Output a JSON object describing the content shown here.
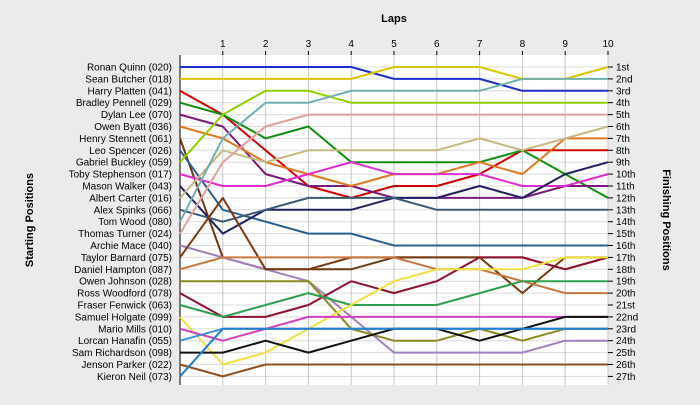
{
  "chart_data": {
    "type": "line",
    "title": "",
    "xlabel": "Laps",
    "ylabel_left": "Starting Positions",
    "ylabel_right": "Finishing Positions",
    "x": [
      0,
      1,
      2,
      3,
      4,
      5,
      6,
      7,
      8,
      9,
      10
    ],
    "x_tick_labels": [
      "1",
      "2",
      "3",
      "4",
      "5",
      "6",
      "7",
      "8",
      "9",
      "10"
    ],
    "finishing_labels": [
      "1st",
      "2nd",
      "3rd",
      "4th",
      "5th",
      "6th",
      "7th",
      "8th",
      "9th",
      "10th",
      "11th",
      "12th",
      "13th",
      "14th",
      "15th",
      "16th",
      "17th",
      "18th",
      "19th",
      "20th",
      "21st",
      "22nd",
      "23rd",
      "24th",
      "25th",
      "26th",
      "27th"
    ],
    "ylim": [
      1,
      27
    ],
    "grid": true,
    "series": [
      {
        "name": "Ronan Quinn (020)",
        "color": "#1e2ecc",
        "values": [
          1,
          1,
          1,
          1,
          1,
          2,
          2,
          2,
          3,
          3,
          3
        ]
      },
      {
        "name": "Sean Butcher (018)",
        "color": "#d9c400",
        "values": [
          2,
          2,
          2,
          2,
          2,
          1,
          1,
          1,
          2,
          2,
          1
        ]
      },
      {
        "name": "Harry Platten (041)",
        "color": "#d40000",
        "values": [
          3,
          5,
          8,
          11,
          12,
          11,
          11,
          10,
          8,
          8,
          8
        ]
      },
      {
        "name": "Bradley Pennell (029)",
        "color": "#109010",
        "values": [
          4,
          5,
          7,
          6,
          9,
          9,
          9,
          9,
          8,
          10,
          12
        ]
      },
      {
        "name": "Dylan Lee (070)",
        "color": "#7a1a7a",
        "values": [
          5,
          6,
          10,
          11,
          11,
          12,
          12,
          12,
          12,
          11,
          11
        ]
      },
      {
        "name": "Owen Byatt (036)",
        "color": "#e07820",
        "values": [
          6,
          7,
          9,
          10,
          11,
          10,
          10,
          9,
          10,
          7,
          7
        ]
      },
      {
        "name": "Henry Stennett (061)",
        "color": "#6b3a14",
        "values": [
          7,
          17,
          18,
          18,
          18,
          17,
          17,
          17,
          17,
          18,
          17
        ]
      },
      {
        "name": "Leo Spencer (026)",
        "color": "#2a6090",
        "values": [
          8,
          13,
          14,
          15,
          15,
          16,
          16,
          16,
          16,
          16,
          16
        ]
      },
      {
        "name": "Gabriel Buckley (059)",
        "color": "#8fd000",
        "values": [
          9,
          5,
          3,
          3,
          4,
          4,
          4,
          4,
          4,
          4,
          4
        ]
      },
      {
        "name": "Toby Stephenson (017)",
        "color": "#e02cd0",
        "values": [
          10,
          11,
          11,
          10,
          9,
          10,
          10,
          10,
          11,
          11,
          10
        ]
      },
      {
        "name": "Mason Walker (043)",
        "color": "#202060",
        "values": [
          11,
          15,
          13,
          13,
          13,
          12,
          12,
          11,
          12,
          10,
          9
        ]
      },
      {
        "name": "Albert Carter (016)",
        "color": "#c8b882",
        "values": [
          12,
          8,
          9,
          8,
          8,
          8,
          8,
          7,
          8,
          7,
          6
        ]
      },
      {
        "name": "Alex Spinks (066)",
        "color": "#3a5a7a",
        "values": [
          13,
          14,
          13,
          12,
          12,
          12,
          13,
          13,
          13,
          13,
          13
        ]
      },
      {
        "name": "Tom Wood (080)",
        "color": "#70b0b0",
        "values": [
          14,
          7,
          4,
          4,
          3,
          3,
          3,
          3,
          2,
          2,
          2
        ]
      },
      {
        "name": "Thomas Turner (024)",
        "color": "#e0a0a0",
        "values": [
          15,
          9,
          6,
          5,
          5,
          5,
          5,
          5,
          5,
          5,
          5
        ]
      },
      {
        "name": "Archie Mace (040)",
        "color": "#a080c0",
        "values": [
          16,
          17,
          18,
          19,
          22,
          25,
          25,
          25,
          25,
          24,
          24
        ]
      },
      {
        "name": "Taylor Barnard (075)",
        "color": "#7a3a10",
        "values": [
          17,
          12,
          18,
          18,
          17,
          17,
          17,
          17,
          20,
          17,
          17
        ]
      },
      {
        "name": "Daniel Hampton (087)",
        "color": "#c87840",
        "values": [
          18,
          17,
          17,
          17,
          17,
          17,
          18,
          18,
          19,
          20,
          20
        ]
      },
      {
        "name": "Owen Johnson (028)",
        "color": "#8a8a20",
        "values": [
          19,
          19,
          19,
          19,
          23,
          24,
          24,
          23,
          24,
          23,
          23
        ]
      },
      {
        "name": "Ross Woodford (078)",
        "color": "#901030",
        "values": [
          20,
          22,
          22,
          21,
          19,
          20,
          19,
          17,
          17,
          18,
          17
        ]
      },
      {
        "name": "Fraser Fenwick (063)",
        "color": "#30a050",
        "values": [
          21,
          22,
          21,
          20,
          21,
          21,
          21,
          20,
          19,
          19,
          19
        ]
      },
      {
        "name": "Samuel Holgate (099)",
        "color": "#f0e040",
        "values": [
          22,
          26,
          25,
          23,
          21,
          19,
          18,
          18,
          18,
          17,
          17
        ]
      },
      {
        "name": "Mario Mills (010)",
        "color": "#d040c0",
        "values": [
          23,
          24,
          23,
          22,
          22,
          22,
          22,
          22,
          22,
          22,
          22
        ]
      },
      {
        "name": "Lorcan Hanafin (055)",
        "color": "#4090e0",
        "values": [
          24,
          23,
          23,
          23,
          23,
          23,
          23,
          23,
          23,
          23,
          23
        ]
      },
      {
        "name": "Sam Richardson (098)",
        "color": "#101010",
        "values": [
          25,
          25,
          24,
          25,
          24,
          23,
          23,
          24,
          23,
          22,
          22
        ]
      },
      {
        "name": "Jenson Parker (022)",
        "color": "#905020",
        "values": [
          26,
          27,
          26,
          26,
          26,
          26,
          26,
          26,
          26,
          26,
          26
        ]
      },
      {
        "name": "Kieron Neil (073)",
        "color": "#2080d0",
        "values": [
          27,
          23,
          23,
          23,
          23,
          23,
          23,
          23,
          23,
          23,
          23
        ]
      }
    ]
  }
}
